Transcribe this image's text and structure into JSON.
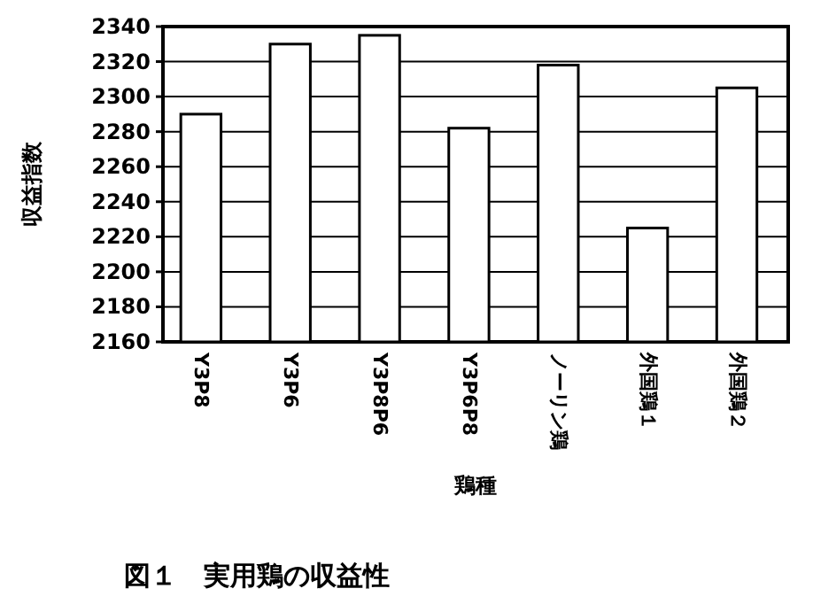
{
  "chart_data": {
    "type": "bar",
    "title": "図１　実用鶏の収益性",
    "xlabel": "鶏種",
    "ylabel": "収益指数",
    "categories": [
      "Y3P8",
      "Y3P6",
      "Y3P8P6",
      "Y3P6P8",
      "ノーリン鶏",
      "外国鶏１",
      "外国鶏２"
    ],
    "values": [
      2290,
      2330,
      2335,
      2282,
      2318,
      2225,
      2305
    ],
    "color": "#ffffff",
    "ylim": [
      2160,
      2340
    ],
    "yticks": [
      2160,
      2180,
      2200,
      2220,
      2240,
      2260,
      2280,
      2300,
      2320,
      2340
    ],
    "grid": "y"
  }
}
